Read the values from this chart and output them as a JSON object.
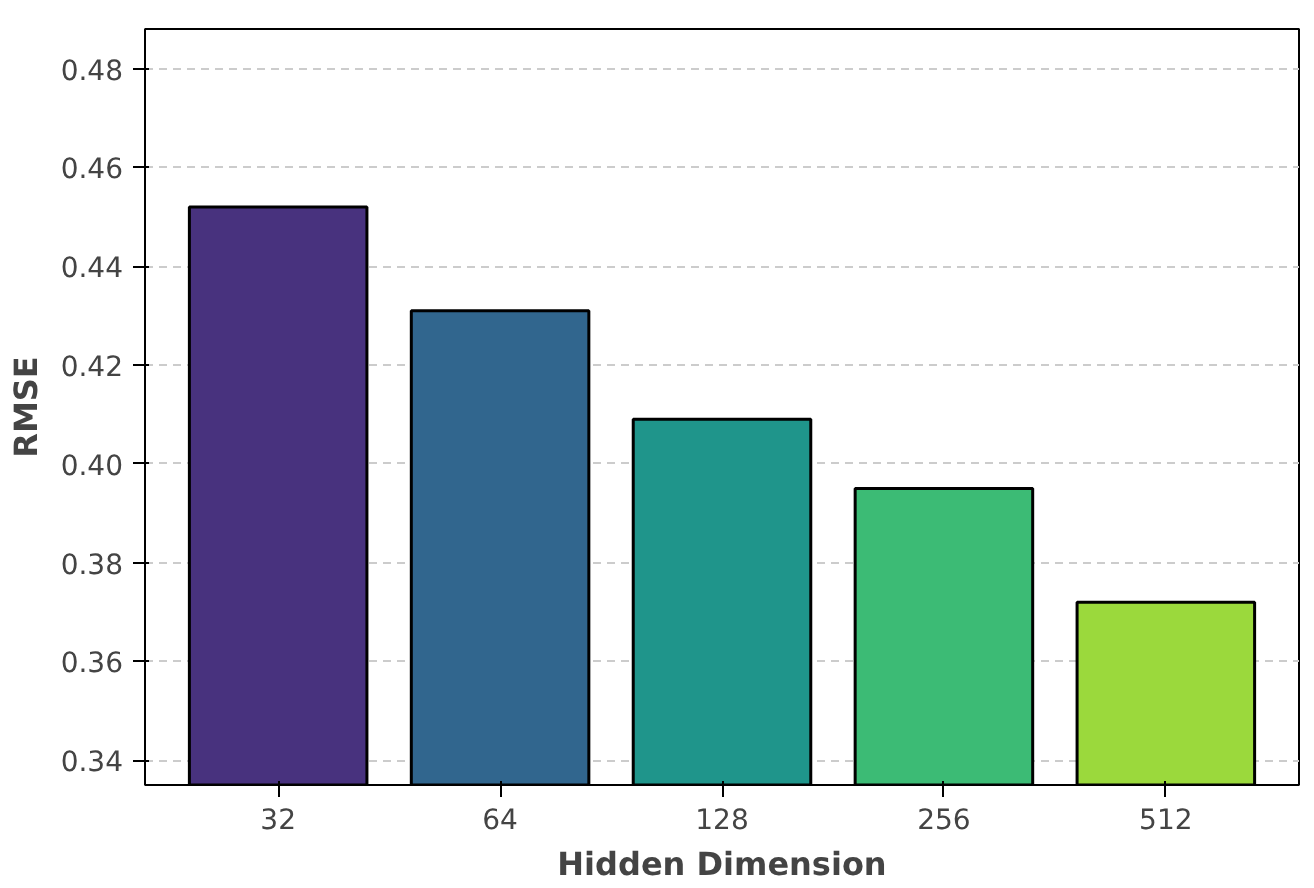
{
  "chart_data": {
    "type": "bar",
    "xlabel": "Hidden Dimension",
    "ylabel": "RMSE",
    "categories": [
      "32",
      "64",
      "128",
      "256",
      "512"
    ],
    "values": [
      0.452,
      0.431,
      0.409,
      0.395,
      0.372
    ],
    "colors": [
      "#48327e",
      "#31668e",
      "#1f958b",
      "#3cbb75",
      "#9bd93c"
    ],
    "ylim": [
      0.335,
      0.488
    ],
    "yticks": [
      0.34,
      0.36,
      0.38,
      {
        "value": 0.4,
        "label": "0.40"
      },
      0.42,
      0.44,
      0.46,
      0.48
    ],
    "grid": "y"
  }
}
